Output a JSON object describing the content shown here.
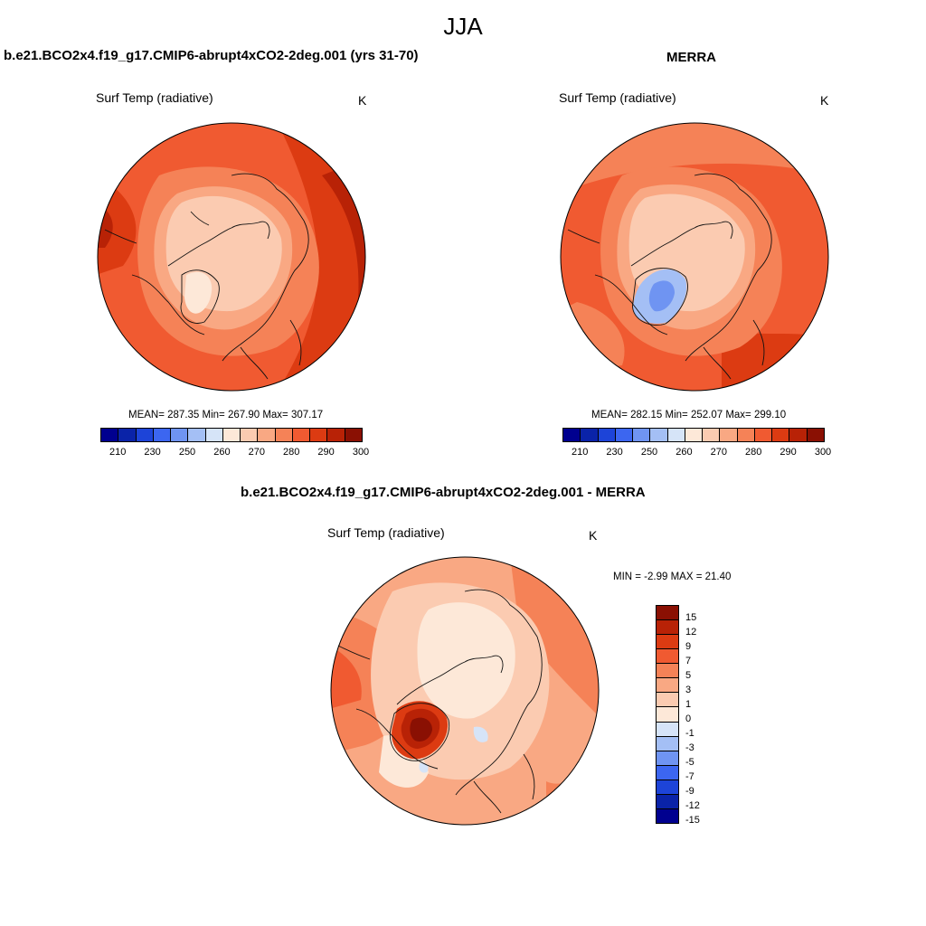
{
  "title": "JJA",
  "panels": {
    "model": {
      "subtitle": "b.e21.BCO2x4.f19_g17.CMIP6-abrupt4xCO2-2deg.001 (yrs 31-70)",
      "variable": "Surf Temp (radiative)",
      "units": "K",
      "stats": "MEAN= 287.35  Min= 267.90  Max= 307.17"
    },
    "obs": {
      "subtitle": "MERRA",
      "variable": "Surf Temp (radiative)",
      "units": "K",
      "stats": "MEAN= 282.15  Min= 252.07  Max= 299.10"
    },
    "diff": {
      "subtitle": "b.e21.BCO2x4.f19_g17.CMIP6-abrupt4xCO2-2deg.001 - MERRA",
      "variable": "Surf Temp (radiative)",
      "units": "K",
      "stats": "MIN =  -2.99 MAX =  21.40"
    }
  },
  "colorbar_abs": {
    "ticks": [
      "210",
      "230",
      "250",
      "260",
      "270",
      "280",
      "290",
      "300"
    ],
    "colors": [
      "#00008f",
      "#0a23a8",
      "#1d44d8",
      "#3c66f0",
      "#6f94f2",
      "#a4bff5",
      "#d6e4f8",
      "#fde8d8",
      "#fbcbb1",
      "#f9a883",
      "#f58257",
      "#f05a31",
      "#dc3b12",
      "#b82206",
      "#8a1003"
    ]
  },
  "colorbar_diff": {
    "ticks": [
      "15",
      "12",
      "9",
      "7",
      "5",
      "3",
      "1",
      "0",
      "-1",
      "-3",
      "-5",
      "-7",
      "-9",
      "-12",
      "-15"
    ],
    "colors": [
      "#8a1003",
      "#b82206",
      "#dc3b12",
      "#f05a31",
      "#f58257",
      "#f9a883",
      "#fbcbb1",
      "#fde8d8",
      "#d6e4f8",
      "#a4bff5",
      "#6f94f2",
      "#3c66f0",
      "#1d44d8",
      "#0a23a8",
      "#00008f"
    ]
  }
}
